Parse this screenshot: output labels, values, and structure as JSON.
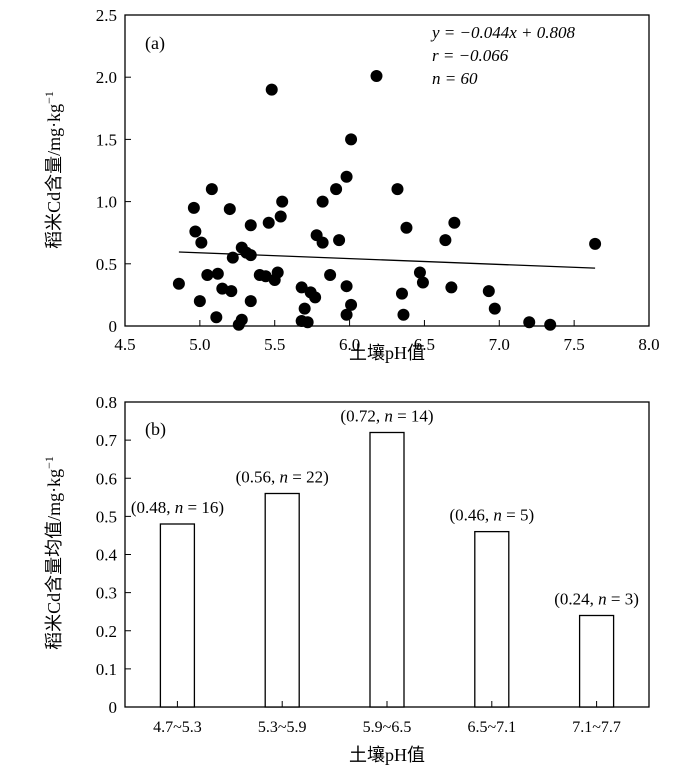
{
  "chart_data": [
    {
      "panel": "(a)",
      "type": "scatter",
      "xlabel": "土壤pH值",
      "ylabel": "稻米Cd含量/mg·kg",
      "ylabel_sup": "−1",
      "xlim": [
        4.5,
        8.0
      ],
      "ylim": [
        0,
        2.5
      ],
      "x_ticks": [
        "4.5",
        "5.0",
        "5.5",
        "6.0",
        "6.5",
        "7.0",
        "7.5",
        "8.0"
      ],
      "y_ticks": [
        "0",
        "0.5",
        "1.0",
        "1.5",
        "2.0",
        "2.5"
      ],
      "annotations": {
        "equation": "y = −0.044x + 0.808",
        "r": "r = −0.066",
        "n": "n = 60"
      },
      "trend_line": {
        "x": [
          4.86,
          7.64
        ],
        "y": [
          0.595,
          0.465
        ]
      },
      "points": [
        [
          4.86,
          0.34
        ],
        [
          4.96,
          0.95
        ],
        [
          4.97,
          0.76
        ],
        [
          5.0,
          0.2
        ],
        [
          5.01,
          0.67
        ],
        [
          5.05,
          0.41
        ],
        [
          5.08,
          1.1
        ],
        [
          5.11,
          0.07
        ],
        [
          5.12,
          0.42
        ],
        [
          5.15,
          0.3
        ],
        [
          5.2,
          0.94
        ],
        [
          5.21,
          0.28
        ],
        [
          5.22,
          0.55
        ],
        [
          5.26,
          0.01
        ],
        [
          5.28,
          0.05
        ],
        [
          5.28,
          0.63
        ],
        [
          5.31,
          0.59
        ],
        [
          5.34,
          0.81
        ],
        [
          5.34,
          0.2
        ],
        [
          5.34,
          0.57
        ],
        [
          5.4,
          0.41
        ],
        [
          5.44,
          0.4
        ],
        [
          5.46,
          0.83
        ],
        [
          5.48,
          1.9
        ],
        [
          5.5,
          0.37
        ],
        [
          5.52,
          0.43
        ],
        [
          5.54,
          0.88
        ],
        [
          5.55,
          1.0
        ],
        [
          5.68,
          0.31
        ],
        [
          5.68,
          0.04
        ],
        [
          5.7,
          0.14
        ],
        [
          5.72,
          0.03
        ],
        [
          5.74,
          0.27
        ],
        [
          5.77,
          0.23
        ],
        [
          5.78,
          0.73
        ],
        [
          5.82,
          0.67
        ],
        [
          5.82,
          1.0
        ],
        [
          5.87,
          0.41
        ],
        [
          5.91,
          1.1
        ],
        [
          5.93,
          0.69
        ],
        [
          5.98,
          1.2
        ],
        [
          5.98,
          0.32
        ],
        [
          5.98,
          0.09
        ],
        [
          6.01,
          1.5
        ],
        [
          6.01,
          0.17
        ],
        [
          6.18,
          2.01
        ],
        [
          6.32,
          1.1
        ],
        [
          6.35,
          0.26
        ],
        [
          6.36,
          0.09
        ],
        [
          6.38,
          0.79
        ],
        [
          6.47,
          0.43
        ],
        [
          6.49,
          0.35
        ],
        [
          6.64,
          0.69
        ],
        [
          6.68,
          0.31
        ],
        [
          6.7,
          0.83
        ],
        [
          6.93,
          0.28
        ],
        [
          6.97,
          0.14
        ],
        [
          7.2,
          0.03
        ],
        [
          7.34,
          0.01
        ],
        [
          7.64,
          0.66
        ]
      ]
    },
    {
      "panel": "(b)",
      "type": "bar",
      "xlabel": "土壤pH值",
      "ylabel": "稻米Cd含量均值/mg·kg",
      "ylabel_sup": "−1",
      "ylim": [
        0,
        0.8
      ],
      "y_ticks": [
        "0",
        "0.1",
        "0.2",
        "0.3",
        "0.4",
        "0.5",
        "0.6",
        "0.7",
        "0.8"
      ],
      "categories": [
        "4.7~5.3",
        "5.3~5.9",
        "5.9~6.5",
        "6.5~7.1",
        "7.1~7.7"
      ],
      "values": [
        0.48,
        0.56,
        0.72,
        0.46,
        0.24
      ],
      "n": [
        16,
        22,
        14,
        5,
        3
      ],
      "bar_labels": [
        "(0.48, n = 16)",
        "(0.56, n = 22)",
        "(0.72, n = 14)",
        "(0.46, n = 5)",
        "(0.24, n = 3)"
      ]
    }
  ]
}
